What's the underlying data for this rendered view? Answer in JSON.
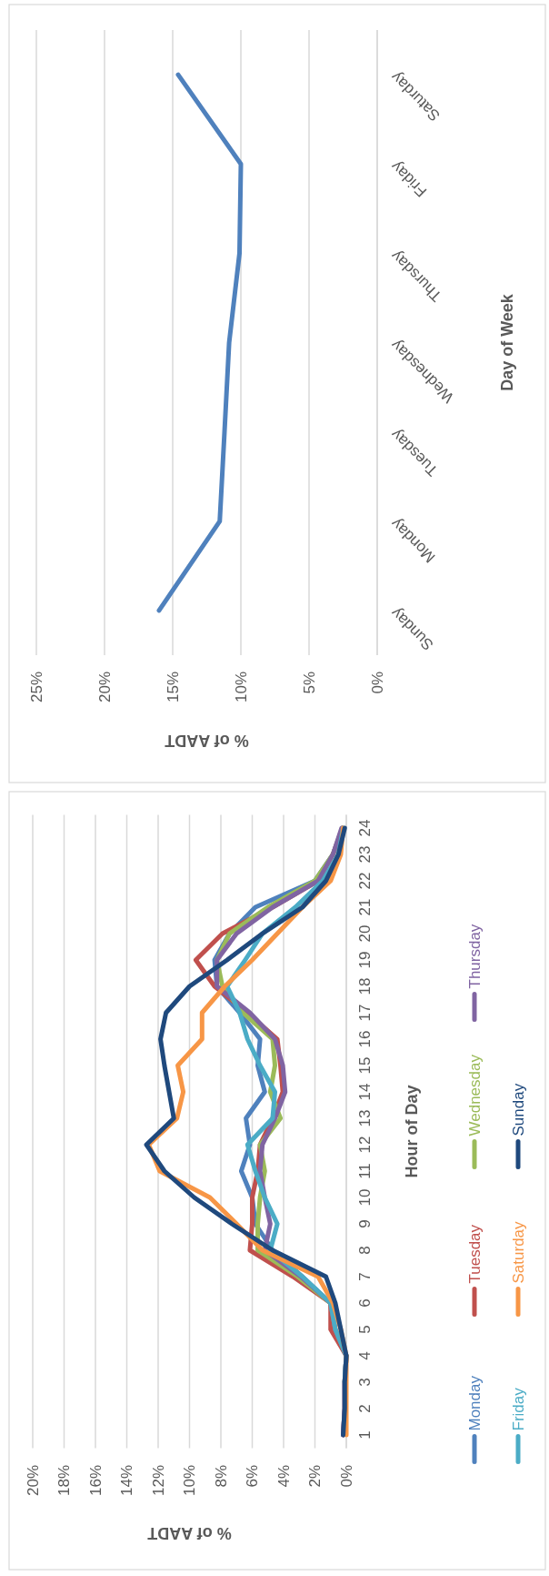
{
  "chart_data": [
    {
      "type": "line",
      "orientation": "horizontal",
      "xlabel": "% of AADT",
      "ylabel": "Hour of Day",
      "categories": [
        "24",
        "23",
        "22",
        "21",
        "20",
        "19",
        "18",
        "17",
        "16",
        "15",
        "14",
        "13",
        "12",
        "11",
        "10",
        "9",
        "8",
        "7",
        "6",
        "5",
        "4",
        "3",
        "2",
        "1"
      ],
      "series": [
        {
          "name": "Monday",
          "color": "#4f81bd",
          "values": [
            0.2,
            0.85,
            2.0,
            5.8,
            7.45,
            8.4,
            8.25,
            6.8,
            5.5,
            5.65,
            5.2,
            6.4,
            6.15,
            6.7,
            6.0,
            5.8,
            4.7,
            2.8,
            1.0,
            0.85,
            0,
            0.1,
            0.1,
            0.2
          ]
        },
        {
          "name": "Tuesday",
          "color": "#c0504d",
          "values": [
            0.25,
            0.85,
            1.8,
            4.7,
            7.9,
            9.6,
            8.4,
            6.3,
            4.4,
            4.2,
            4.05,
            4.7,
            5.5,
            5.65,
            6.0,
            6.0,
            6.15,
            3.4,
            1.0,
            1.0,
            0,
            0.1,
            0.1,
            0.2
          ]
        },
        {
          "name": "Wednesday",
          "color": "#9bbb59",
          "values": [
            0.25,
            0.85,
            2.0,
            5.0,
            7.45,
            8.25,
            7.9,
            6.6,
            4.7,
            4.55,
            4.85,
            4.2,
            5.5,
            5.2,
            5.5,
            5.65,
            5.65,
            3.1,
            1.0,
            0.7,
            0,
            0.1,
            null,
            null
          ]
        },
        {
          "name": "Thursday",
          "color": "#8064a2",
          "values": [
            0.3,
            0.85,
            1.8,
            4.7,
            7.0,
            8.25,
            8.25,
            6.15,
            4.55,
            4.05,
            3.9,
            4.55,
            5.35,
            5.5,
            5.2,
            4.85,
            5.2,
            2.9,
            1.0,
            0.7,
            0,
            0.1,
            0.1,
            0.2
          ]
        },
        {
          "name": "Friday",
          "color": "#4bacc6",
          "values": [
            0.2,
            0.5,
            1.5,
            3.25,
            5.35,
            6.45,
            7.6,
            6.8,
            6.3,
            5.5,
            4.55,
            4.7,
            6.3,
            5.8,
            5.2,
            4.4,
            4.85,
            2.8,
            1.0,
            0.7,
            0,
            0.1,
            null,
            null
          ]
        },
        {
          "name": "Saturday",
          "color": "#f79646",
          "values": [
            0.2,
            0.35,
            1.0,
            2.8,
            4.4,
            6.0,
            7.75,
            9.2,
            9.2,
            10.75,
            10.4,
            10.8,
            12.6,
            11.9,
            8.7,
            7.0,
            5.35,
            1.8,
            0.85,
            0.35,
            0,
            0,
            0,
            0
          ]
        },
        {
          "name": "Sunday",
          "color": "#1f497d",
          "values": [
            0.1,
            0.5,
            1.3,
            2.8,
            5.35,
            7.6,
            10.0,
            11.5,
            11.85,
            11.6,
            11.3,
            11.0,
            12.75,
            11.6,
            9.7,
            7.3,
            4.7,
            1.3,
            0.7,
            0.35,
            0,
            0.1,
            0.1,
            0.2
          ]
        }
      ],
      "xlim": [
        20,
        0
      ],
      "xticks": [
        {
          "value": 20,
          "label": "20%"
        },
        {
          "value": 18,
          "label": "18%"
        },
        {
          "value": 16,
          "label": "16%"
        },
        {
          "value": 14,
          "label": "14%"
        },
        {
          "value": 12,
          "label": "12%"
        },
        {
          "value": 10,
          "label": "10%"
        },
        {
          "value": 8,
          "label": "8%"
        },
        {
          "value": 6,
          "label": "6%"
        },
        {
          "value": 4,
          "label": "4%"
        },
        {
          "value": 2,
          "label": "2%"
        },
        {
          "value": 0,
          "label": "0%"
        }
      ],
      "grid": "x",
      "legend": "right"
    },
    {
      "type": "line",
      "orientation": "horizontal",
      "xlabel": "% of AADT",
      "ylabel": "Day of Week",
      "categories": [
        "Saturday",
        "Friday",
        "Thursday",
        "Wednesday",
        "Tuesday",
        "Monday",
        "Sunday"
      ],
      "series": [
        {
          "color": "#4f81bd",
          "values": [
            14.6,
            10.0,
            10.1,
            10.86,
            11.2,
            11.55,
            16.0
          ]
        }
      ],
      "xlim": [
        25,
        0
      ],
      "xticks": [
        {
          "value": 25,
          "label": "25%"
        },
        {
          "value": 20,
          "label": "20%"
        },
        {
          "value": 15,
          "label": "15%"
        },
        {
          "value": 10,
          "label": "10%"
        },
        {
          "value": 5,
          "label": "5%"
        },
        {
          "value": 0,
          "label": "0%"
        }
      ],
      "grid": "x",
      "legend": false
    }
  ]
}
